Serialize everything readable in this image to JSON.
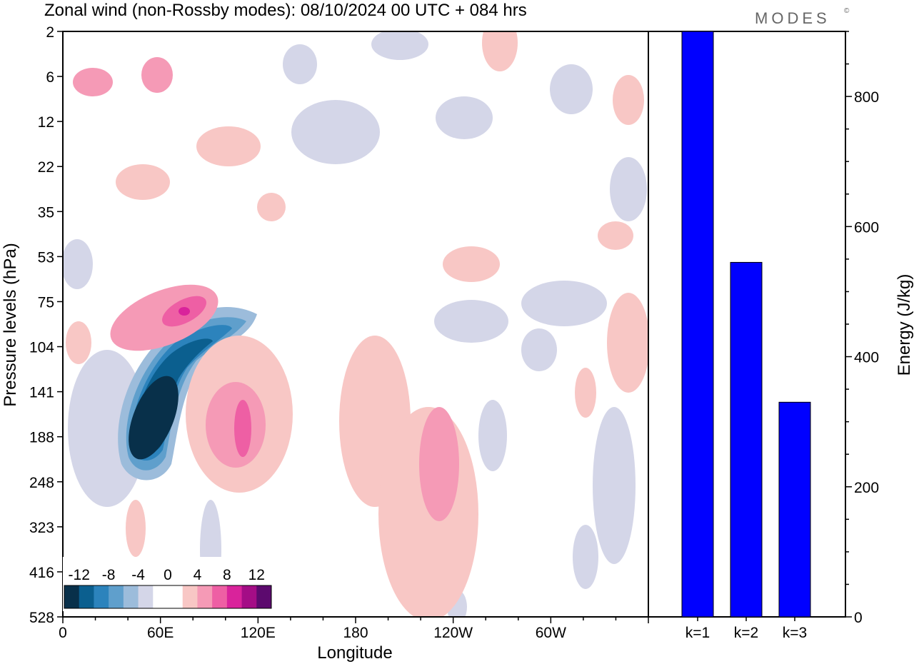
{
  "title": "Zonal wind (non-Rossby modes):  08/10/2024  00 UTC  + 084 hrs",
  "logo": "MODES",
  "logo_mark": "©",
  "chart_data": [
    {
      "type": "heatmap",
      "xlabel": "Longitude",
      "ylabel": "Pressure levels (hPa)",
      "x_ticks": [
        "0",
        "60E",
        "120E",
        "180",
        "120W",
        "60W"
      ],
      "y_ticks": [
        "2",
        "6",
        "12",
        "22",
        "35",
        "53",
        "75",
        "104",
        "141",
        "188",
        "248",
        "323",
        "416",
        "528"
      ],
      "colorbar": {
        "labels": [
          "-12",
          "-8",
          "-4",
          "0",
          "4",
          "8",
          "12"
        ],
        "colors": [
          "#08304a",
          "#0b5f8f",
          "#2c83bc",
          "#5f9fcc",
          "#9cbcdb",
          "#d4d6e8",
          "#ffffff",
          "#ffffff",
          "#f8c7c5",
          "#f59ab6",
          "#ee5fa4",
          "#d9239b",
          "#a40d86",
          "#5c0a6e"
        ]
      },
      "features": [
        {
          "name": "negative-jet-core",
          "color": "#08304a"
        },
        {
          "name": "positive-upper-band",
          "color": "#ee5fa4"
        },
        {
          "name": "positive-120E",
          "color": "#ee5fa4"
        }
      ]
    },
    {
      "type": "bar",
      "categories": [
        "k=1",
        "k=2",
        "k=3"
      ],
      "values": [
        900,
        545,
        330
      ],
      "ylabel": "Energy (J/kg)",
      "y_ticks": [
        "0",
        "200",
        "400",
        "600",
        "800"
      ],
      "ylim": [
        0,
        900
      ],
      "bar_color": "#0000ff"
    }
  ]
}
